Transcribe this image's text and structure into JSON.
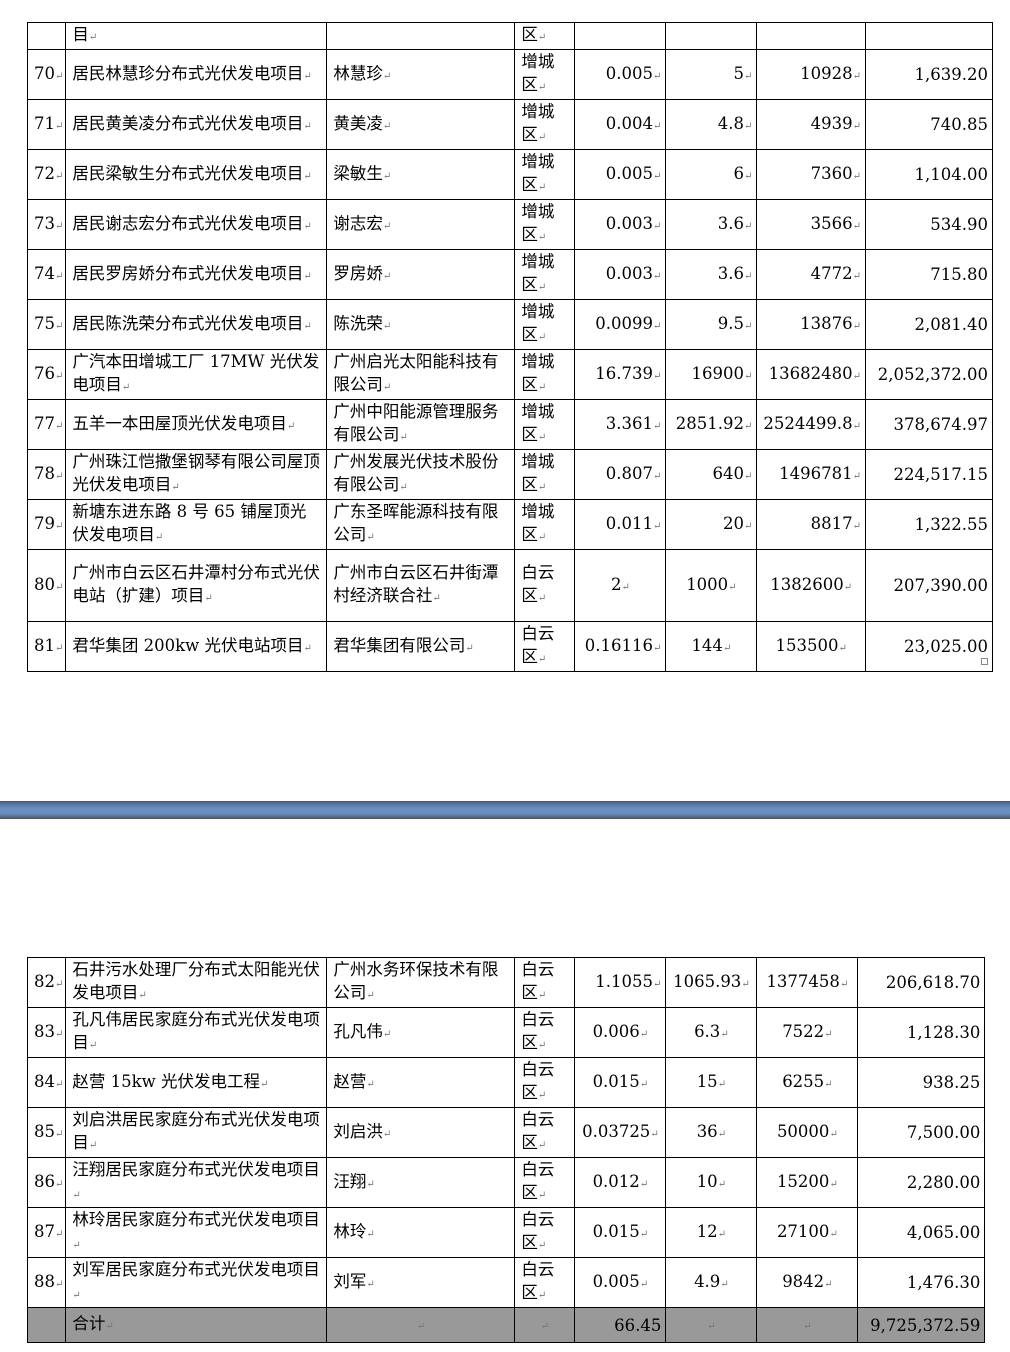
{
  "table_top": {
    "continued_row": {
      "project": "目",
      "district": "区"
    },
    "rows": [
      {
        "no": "70",
        "project": "居民林慧珍分布式光伏发电项目",
        "owner": "林慧珍",
        "district": "增城区",
        "capacity": "0.005",
        "c5": "5",
        "c6": "10928",
        "amount": "1,639.20"
      },
      {
        "no": "71",
        "project": "居民黄美凌分布式光伏发电项目",
        "owner": "黄美凌",
        "district": "增城区",
        "capacity": "0.004",
        "c5": "4.8",
        "c6": "4939",
        "amount": "740.85"
      },
      {
        "no": "72",
        "project": "居民梁敏生分布式光伏发电项目",
        "owner": "梁敏生",
        "district": "增城区",
        "capacity": "0.005",
        "c5": "6",
        "c6": "7360",
        "amount": "1,104.00"
      },
      {
        "no": "73",
        "project": "居民谢志宏分布式光伏发电项目",
        "owner": "谢志宏",
        "district": "增城区",
        "capacity": "0.003",
        "c5": "3.6",
        "c6": "3566",
        "amount": "534.90"
      },
      {
        "no": "74",
        "project": "居民罗房娇分布式光伏发电项目",
        "owner": "罗房娇",
        "district": "增城区",
        "capacity": "0.003",
        "c5": "3.6",
        "c6": "4772",
        "amount": "715.80"
      },
      {
        "no": "75",
        "project": "居民陈洗荣分布式光伏发电项目",
        "owner": "陈洗荣",
        "district": "增城区",
        "capacity": "0.0099",
        "c5": "9.5",
        "c6": "13876",
        "amount": "2,081.40"
      },
      {
        "no": "76",
        "project": "广汽本田增城工厂 17MW 光伏发电项目",
        "owner": "广州启光太阳能科技有限公司",
        "district": "增城区",
        "capacity": "16.739",
        "c5": "16900",
        "c6": "13682480",
        "amount": "2,052,372.00"
      },
      {
        "no": "77",
        "project": "五羊一本田屋顶光伏发电项目",
        "owner": "广州中阳能源管理服务有限公司",
        "district": "增城区",
        "capacity": "3.361",
        "c5": "2851.92",
        "c6": "2524499.8",
        "amount": "378,674.97"
      },
      {
        "no": "78",
        "project": "广州珠江恺撒堡钢琴有限公司屋顶光伏发电项目",
        "owner": "广州发展光伏技术股份有限公司",
        "district": "增城区",
        "capacity": "0.807",
        "c5": "640",
        "c6": "1496781",
        "amount": "224,517.15"
      },
      {
        "no": "79",
        "project": "新塘东进东路 8 号 65 铺屋顶光伏发电项目",
        "owner": "广东圣晖能源科技有限公司",
        "district": "增城区",
        "capacity": "0.011",
        "c5": "20",
        "c6": "8817",
        "amount": "1,322.55"
      },
      {
        "no": "80",
        "project": "广州市白云区石井潭村分布式光伏电站（扩建）项目",
        "owner": "广州市白云区石井街潭村经济联合社",
        "district": "白云区",
        "capacity": "2",
        "c5": "1000",
        "c6": "1382600",
        "amount": "207,390.00"
      },
      {
        "no": "81",
        "project": "君华集团 200kw 光伏电站项目",
        "owner": "君华集团有限公司",
        "district": "白云区",
        "capacity": "0.16116",
        "c5": "144",
        "c6": "153500",
        "amount": "23,025.00"
      }
    ]
  },
  "table_bottom": {
    "rows": [
      {
        "no": "82",
        "project": "石井污水处理厂分布式太阳能光伏发电项目",
        "owner": "广州水务环保技术有限公司",
        "district": "白云区",
        "capacity": "1.1055",
        "c5": "1065.93",
        "c6": "1377458",
        "amount": "206,618.70"
      },
      {
        "no": "83",
        "project": "孔凡伟居民家庭分布式光伏发电项目",
        "owner": "孔凡伟",
        "district": "白云区",
        "capacity": "0.006",
        "c5": "6.3",
        "c6": "7522",
        "amount": "1,128.30"
      },
      {
        "no": "84",
        "project": "赵营 15kw 光伏发电工程",
        "owner": "赵营",
        "district": "白云区",
        "capacity": "0.015",
        "c5": "15",
        "c6": "6255",
        "amount": "938.25"
      },
      {
        "no": "85",
        "project": "刘启洪居民家庭分布式光伏发电项目",
        "owner": "刘启洪",
        "district": "白云区",
        "capacity": "0.03725",
        "c5": "36",
        "c6": "50000",
        "amount": "7,500.00"
      },
      {
        "no": "86",
        "project": "汪翔居民家庭分布式光伏发电项目",
        "owner": "汪翔",
        "district": "白云区",
        "capacity": "0.012",
        "c5": "10",
        "c6": "15200",
        "amount": "2,280.00"
      },
      {
        "no": "87",
        "project": "林玲居民家庭分布式光伏发电项目",
        "owner": "林玲",
        "district": "白云区",
        "capacity": "0.015",
        "c5": "12",
        "c6": "27100",
        "amount": "4,065.00"
      },
      {
        "no": "88",
        "project": "刘军居民家庭分布式光伏发电项目",
        "owner": "刘军",
        "district": "白云区",
        "capacity": "0.005",
        "c5": "4.9",
        "c6": "9842",
        "amount": "1,476.30"
      }
    ],
    "total": {
      "label": "合计",
      "capacity": "66.45",
      "amount": "9,725,372.59"
    }
  },
  "colors": {
    "total_row_bg": "#999999",
    "page_break": "#6a8fbf"
  }
}
